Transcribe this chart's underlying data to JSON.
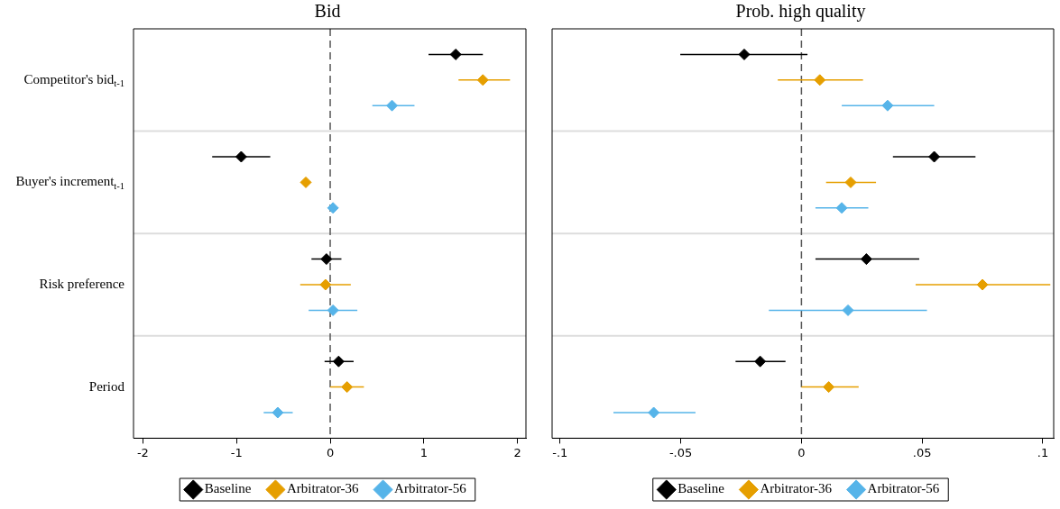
{
  "chart_data": [
    {
      "type": "scatter",
      "orientation": "horizontal",
      "title": "Bid",
      "categories": [
        "Competitor's bid$_{t-1}$",
        "Buyer's increment$_{t-1}$",
        "Risk preference",
        "Period"
      ],
      "series": [
        {
          "name": "Baseline",
          "color": "#000000",
          "values": [
            1.34,
            -0.95,
            -0.04,
            0.09
          ],
          "errors": [
            [
              1.05,
              1.63
            ],
            [
              -1.26,
              -0.64
            ],
            [
              -0.2,
              0.12
            ],
            [
              -0.06,
              0.25
            ]
          ]
        },
        {
          "name": "Arbitrator-36",
          "color": "#e69f00",
          "values": [
            1.63,
            -0.26,
            -0.05,
            0.18
          ],
          "errors": [
            [
              1.37,
              1.92
            ],
            [
              -0.31,
              -0.21
            ],
            [
              -0.32,
              0.22
            ],
            [
              0.0,
              0.36
            ]
          ]
        },
        {
          "name": "Arbitrator-56",
          "color": "#56b4e9",
          "values": [
            0.66,
            0.03,
            0.03,
            -0.56
          ],
          "errors": [
            [
              0.45,
              0.9
            ],
            [
              -0.02,
              0.08
            ],
            [
              -0.23,
              0.29
            ],
            [
              -0.71,
              -0.4
            ]
          ]
        }
      ],
      "xlim": [
        -2.1,
        2.09
      ],
      "xticks": [
        -2,
        -1,
        0,
        1,
        2
      ],
      "ref_lines": [
        {
          "axis": "x",
          "value": 0,
          "line_style": "dashed"
        }
      ],
      "grid": "y",
      "marker": "diamond",
      "legend": "bottom"
    },
    {
      "type": "scatter",
      "orientation": "horizontal",
      "title": "Prob. high quality",
      "categories": [
        null,
        null,
        null,
        null
      ],
      "series": [
        {
          "name": "Baseline",
          "color": "#000000",
          "values": [
            -0.0237,
            0.055,
            0.0269,
            -0.0171
          ],
          "errors": [
            [
              -0.0502,
              0.0025
            ],
            [
              0.0379,
              0.0721
            ],
            [
              0.0058,
              0.0488
            ],
            [
              -0.0273,
              -0.0066
            ]
          ]
        },
        {
          "name": "Arbitrator-36",
          "color": "#e69f00",
          "values": [
            0.0076,
            0.0204,
            0.075,
            0.0113
          ],
          "errors": [
            [
              -0.0098,
              0.0255
            ],
            [
              0.0102,
              0.0309
            ],
            [
              0.0473,
              0.1031
            ],
            [
              0.0,
              0.0237
            ]
          ]
        },
        {
          "name": "Arbitrator-56",
          "color": "#56b4e9",
          "values": [
            0.0357,
            0.0167,
            0.0193,
            -0.0612
          ],
          "errors": [
            [
              0.0167,
              0.055
            ],
            [
              0.0058,
              0.0277
            ],
            [
              -0.0135,
              0.052
            ],
            [
              -0.0779,
              -0.0439
            ]
          ]
        }
      ],
      "xlim": [
        -0.1033,
        0.1045
      ],
      "xticks": [
        {
          "value": -0.1,
          "label": "-.1"
        },
        {
          "value": -0.05,
          "label": "-.05"
        },
        0,
        {
          "value": 0.05,
          "label": ".05"
        },
        {
          "value": 0.1,
          "label": ".1"
        }
      ],
      "ref_lines": [
        {
          "axis": "x",
          "value": 0,
          "line_style": "dashed"
        }
      ],
      "grid": "y",
      "marker": "diamond",
      "legend": "bottom",
      "tick_labels": "x"
    }
  ]
}
